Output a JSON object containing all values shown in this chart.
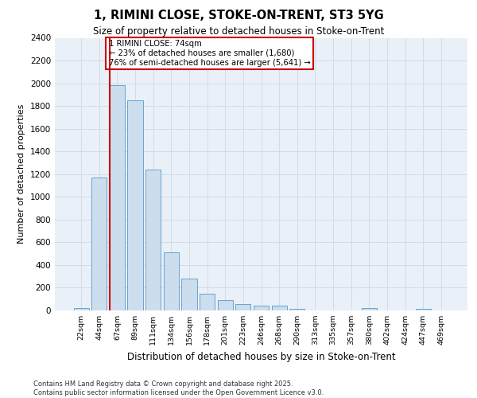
{
  "title1": "1, RIMINI CLOSE, STOKE-ON-TRENT, ST3 5YG",
  "title2": "Size of property relative to detached houses in Stoke-on-Trent",
  "xlabel": "Distribution of detached houses by size in Stoke-on-Trent",
  "ylabel": "Number of detached properties",
  "categories": [
    "22sqm",
    "44sqm",
    "67sqm",
    "89sqm",
    "111sqm",
    "134sqm",
    "156sqm",
    "178sqm",
    "201sqm",
    "223sqm",
    "246sqm",
    "268sqm",
    "290sqm",
    "313sqm",
    "335sqm",
    "357sqm",
    "380sqm",
    "402sqm",
    "424sqm",
    "447sqm",
    "469sqm"
  ],
  "values": [
    20,
    1170,
    1980,
    1850,
    1240,
    510,
    280,
    150,
    90,
    55,
    45,
    40,
    15,
    0,
    0,
    0,
    20,
    0,
    0,
    15,
    0
  ],
  "bar_color": "#ccdded",
  "bar_edge_color": "#5599cc",
  "vline_x": 1.575,
  "vline_color": "#cc0000",
  "annotation_text": "1 RIMINI CLOSE: 74sqm\n← 23% of detached houses are smaller (1,680)\n76% of semi-detached houses are larger (5,641) →",
  "annotation_box_color": "#ffffff",
  "annotation_box_edge": "#cc0000",
  "ylim": [
    0,
    2400
  ],
  "yticks": [
    0,
    200,
    400,
    600,
    800,
    1000,
    1200,
    1400,
    1600,
    1800,
    2000,
    2200,
    2400
  ],
  "grid_color": "#d0dce8",
  "bg_color": "#eaf0f8",
  "footer1": "Contains HM Land Registry data © Crown copyright and database right 2025.",
  "footer2": "Contains public sector information licensed under the Open Government Licence v3.0."
}
